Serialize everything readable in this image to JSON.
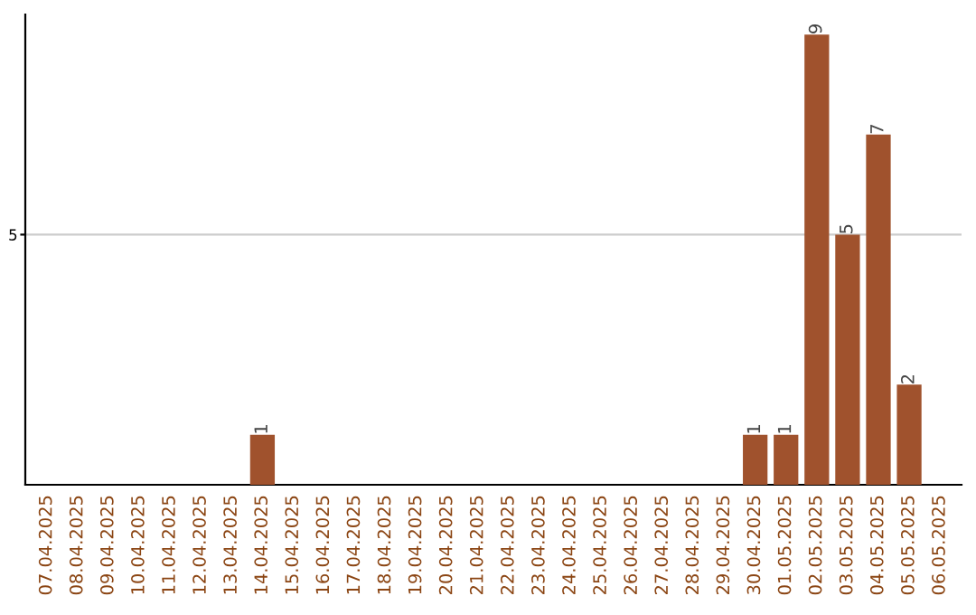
{
  "chart_data": {
    "type": "bar",
    "categories": [
      "07.04.2025",
      "08.04.2025",
      "09.04.2025",
      "10.04.2025",
      "11.04.2025",
      "12.04.2025",
      "13.04.2025",
      "14.04.2025",
      "15.04.2025",
      "16.04.2025",
      "17.04.2025",
      "18.04.2025",
      "19.04.2025",
      "20.04.2025",
      "21.04.2025",
      "22.04.2025",
      "23.04.2025",
      "24.04.2025",
      "25.04.2025",
      "26.04.2025",
      "27.04.2025",
      "28.04.2025",
      "29.04.2025",
      "30.04.2025",
      "01.05.2025",
      "02.05.2025",
      "03.05.2025",
      "04.05.2025",
      "05.05.2025",
      "06.05.2025"
    ],
    "values": [
      0,
      0,
      0,
      0,
      0,
      0,
      0,
      1,
      0,
      0,
      0,
      0,
      0,
      0,
      0,
      0,
      0,
      0,
      0,
      0,
      0,
      0,
      0,
      1,
      1,
      9,
      5,
      7,
      2,
      0
    ],
    "value_labels": [
      null,
      null,
      null,
      null,
      null,
      null,
      null,
      "1",
      null,
      null,
      null,
      null,
      null,
      null,
      null,
      null,
      null,
      null,
      null,
      null,
      null,
      null,
      null,
      "1",
      "1",
      "9",
      "5",
      "7",
      "2",
      null
    ],
    "color": "#a0522d",
    "ylim": [
      0,
      9.4
    ],
    "yticks": [
      5
    ],
    "grid": "y"
  }
}
